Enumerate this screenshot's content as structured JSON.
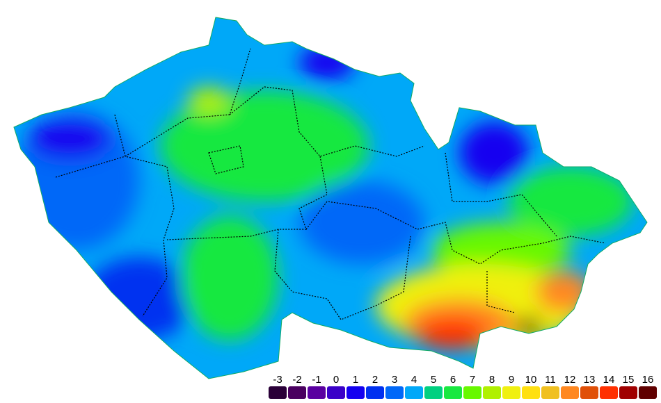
{
  "legend": {
    "items": [
      {
        "label": "-3",
        "color": "#2a0038"
      },
      {
        "label": "-2",
        "color": "#4a0060"
      },
      {
        "label": "-1",
        "color": "#5a00a0"
      },
      {
        "label": "0",
        "color": "#3a00c8"
      },
      {
        "label": "1",
        "color": "#1400f0"
      },
      {
        "label": "2",
        "color": "#0030f0"
      },
      {
        "label": "3",
        "color": "#0068f8"
      },
      {
        "label": "4",
        "color": "#00a8f8"
      },
      {
        "label": "5",
        "color": "#00d080"
      },
      {
        "label": "6",
        "color": "#18e840"
      },
      {
        "label": "7",
        "color": "#68f800"
      },
      {
        "label": "8",
        "color": "#b0f000"
      },
      {
        "label": "9",
        "color": "#f0f010"
      },
      {
        "label": "10",
        "color": "#ffe010"
      },
      {
        "label": "11",
        "color": "#f0c020"
      },
      {
        "label": "12",
        "color": "#ff8820"
      },
      {
        "label": "13",
        "color": "#e05008"
      },
      {
        "label": "14",
        "color": "#ff3000"
      },
      {
        "label": "15",
        "color": "#a00000"
      },
      {
        "label": "16",
        "color": "#600000"
      }
    ]
  }
}
